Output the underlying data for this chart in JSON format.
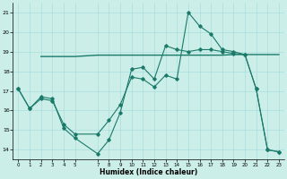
{
  "xlabel": "Humidex (Indice chaleur)",
  "bg_color": "#cceee8",
  "grid_color": "#aadddd",
  "line_color": "#1a7a6a",
  "xlim": [
    -0.5,
    23.5
  ],
  "ylim": [
    13.5,
    21.5
  ],
  "yticks": [
    14,
    15,
    16,
    17,
    18,
    19,
    20,
    21
  ],
  "xticks": [
    0,
    1,
    2,
    3,
    4,
    5,
    7,
    8,
    9,
    10,
    11,
    12,
    13,
    14,
    15,
    16,
    17,
    18,
    19,
    20,
    21,
    22,
    23
  ],
  "xtick_labels": [
    "0",
    "1",
    "2",
    "3",
    "4",
    "5",
    "7",
    "8",
    "9",
    "10",
    "11",
    "12",
    "13",
    "14",
    "15",
    "16",
    "17",
    "18",
    "19",
    "20",
    "21",
    "22",
    "23"
  ],
  "curve1_x": [
    0,
    1,
    2,
    3,
    4,
    5,
    7,
    8,
    9,
    10,
    11,
    12,
    13,
    14,
    15,
    16,
    17,
    18,
    19,
    20,
    21,
    22,
    23
  ],
  "curve1_y": [
    17.1,
    16.1,
    16.7,
    16.6,
    15.1,
    14.6,
    13.8,
    14.5,
    15.9,
    18.1,
    18.2,
    17.6,
    19.3,
    19.1,
    19.0,
    19.1,
    19.1,
    19.0,
    18.9,
    18.85,
    17.1,
    14.0,
    13.9
  ],
  "curve2_x": [
    2,
    3,
    4,
    5,
    7,
    8,
    9,
    10,
    11,
    12,
    13,
    14,
    15,
    16,
    17,
    18,
    19,
    20,
    21,
    22,
    23
  ],
  "curve2_y": [
    18.75,
    18.75,
    18.75,
    18.75,
    18.82,
    18.82,
    18.82,
    18.82,
    18.82,
    18.82,
    18.82,
    18.82,
    18.82,
    18.82,
    18.82,
    18.82,
    18.85,
    18.85,
    18.85,
    18.85,
    18.85
  ],
  "curve3_x": [
    0,
    1,
    2,
    3,
    4,
    5,
    7,
    8,
    9,
    10,
    11,
    12,
    13,
    14,
    15,
    16,
    17,
    18,
    19,
    20,
    21,
    22,
    23
  ],
  "curve3_y": [
    17.1,
    16.1,
    16.6,
    16.5,
    15.3,
    14.8,
    14.8,
    15.5,
    16.3,
    17.7,
    17.6,
    17.2,
    17.8,
    17.6,
    21.0,
    20.3,
    19.9,
    19.1,
    19.0,
    18.85,
    17.1,
    14.0,
    13.9
  ]
}
